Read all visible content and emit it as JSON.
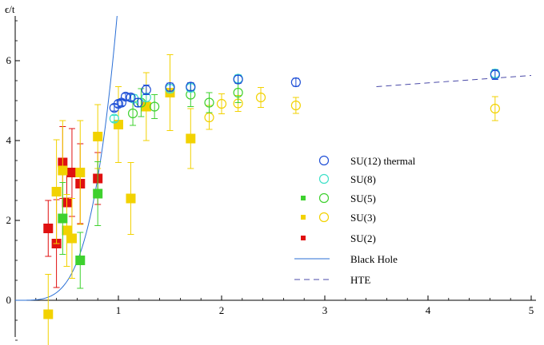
{
  "chart_data": {
    "type": "scatter",
    "ylabel": "ϵ/t",
    "xlim": [
      0,
      5
    ],
    "ylim": [
      -1,
      7
    ],
    "x_ticks": [
      1,
      2,
      3,
      4,
      5
    ],
    "y_ticks": [
      0,
      2,
      4,
      6
    ],
    "x_tick_labels": [
      "1",
      "2",
      "3",
      "4",
      "5"
    ],
    "y_tick_labels": [
      "0",
      "2",
      "4",
      "6"
    ],
    "grid": false,
    "legend_position": "right",
    "series": [
      {
        "name": "SU(12) thermal",
        "style": "open-circle",
        "color": "#1f4fd6",
        "points": [
          {
            "x": 0.96,
            "y": 4.82,
            "err": 0.08
          },
          {
            "x": 1.0,
            "y": 4.92,
            "err": 0.08
          },
          {
            "x": 1.03,
            "y": 4.95,
            "err": 0.08
          },
          {
            "x": 1.07,
            "y": 5.1,
            "err": 0.08
          },
          {
            "x": 1.12,
            "y": 5.08,
            "err": 0.08
          },
          {
            "x": 1.19,
            "y": 4.95,
            "err": 0.1
          },
          {
            "x": 1.27,
            "y": 5.27,
            "err": 0.12
          },
          {
            "x": 1.5,
            "y": 5.34,
            "err": 0.1
          },
          {
            "x": 1.7,
            "y": 5.35,
            "err": 0.1
          },
          {
            "x": 2.16,
            "y": 5.53,
            "err": 0.1
          },
          {
            "x": 2.72,
            "y": 5.46,
            "err": 0.1
          },
          {
            "x": 4.65,
            "y": 5.65,
            "err": 0.12
          }
        ]
      },
      {
        "name": "SU(8)",
        "style": "open-circle",
        "color": "#3ee0c8",
        "points": [
          {
            "x": 0.96,
            "y": 4.55,
            "err": 0.08
          },
          {
            "x": 1.15,
            "y": 5.05,
            "err": 0.1
          },
          {
            "x": 1.27,
            "y": 5.08,
            "err": 0.1
          },
          {
            "x": 1.5,
            "y": 5.3,
            "err": 0.1
          },
          {
            "x": 1.7,
            "y": 5.32,
            "err": 0.1
          },
          {
            "x": 2.16,
            "y": 5.55,
            "err": 0.1
          },
          {
            "x": 4.65,
            "y": 5.68,
            "err": 0.1
          }
        ]
      },
      {
        "name": "SU(5)",
        "style": "square-and-open-circle",
        "color": "#3ed12e",
        "points": [
          {
            "x": 0.46,
            "y": 2.05,
            "err": 0.9,
            "marker": "square"
          },
          {
            "x": 0.63,
            "y": 1.0,
            "err": 0.7,
            "marker": "square"
          },
          {
            "x": 0.8,
            "y": 2.67,
            "err": 0.8,
            "marker": "square"
          },
          {
            "x": 1.14,
            "y": 4.68,
            "err": 0.3,
            "marker": "circle"
          },
          {
            "x": 1.22,
            "y": 4.95,
            "err": 0.35,
            "marker": "circle"
          },
          {
            "x": 1.35,
            "y": 4.85,
            "err": 0.3,
            "marker": "circle"
          },
          {
            "x": 1.7,
            "y": 5.15,
            "err": 0.3,
            "marker": "circle"
          },
          {
            "x": 1.88,
            "y": 4.95,
            "err": 0.25,
            "marker": "circle"
          },
          {
            "x": 2.16,
            "y": 5.2,
            "err": 0.25,
            "marker": "circle"
          }
        ]
      },
      {
        "name": "SU(3)",
        "style": "square-and-open-circle",
        "color": "#f2d200",
        "points": [
          {
            "x": 0.32,
            "y": -0.35,
            "err": 1.0,
            "marker": "square"
          },
          {
            "x": 0.4,
            "y": 2.72,
            "err": 1.3,
            "marker": "square"
          },
          {
            "x": 0.46,
            "y": 3.25,
            "err": 1.25,
            "marker": "square"
          },
          {
            "x": 0.5,
            "y": 1.75,
            "err": 0.9,
            "marker": "square"
          },
          {
            "x": 0.55,
            "y": 1.55,
            "err": 1.0,
            "marker": "square"
          },
          {
            "x": 0.63,
            "y": 3.2,
            "err": 1.3,
            "marker": "square"
          },
          {
            "x": 0.8,
            "y": 4.1,
            "err": 0.8,
            "marker": "square"
          },
          {
            "x": 1.0,
            "y": 4.4,
            "err": 0.95,
            "marker": "square"
          },
          {
            "x": 1.12,
            "y": 2.55,
            "err": 0.9,
            "marker": "square"
          },
          {
            "x": 1.27,
            "y": 4.85,
            "err": 0.85,
            "marker": "square"
          },
          {
            "x": 1.5,
            "y": 5.2,
            "err": 0.95,
            "marker": "square"
          },
          {
            "x": 1.7,
            "y": 4.05,
            "err": 0.75,
            "marker": "square"
          },
          {
            "x": 1.88,
            "y": 4.58,
            "err": 0.3,
            "marker": "circle"
          },
          {
            "x": 2.0,
            "y": 4.92,
            "err": 0.25,
            "marker": "circle"
          },
          {
            "x": 2.16,
            "y": 4.93,
            "err": 0.2,
            "marker": "circle"
          },
          {
            "x": 2.38,
            "y": 5.08,
            "err": 0.25,
            "marker": "circle"
          },
          {
            "x": 2.72,
            "y": 4.88,
            "err": 0.2,
            "marker": "circle"
          },
          {
            "x": 4.65,
            "y": 4.8,
            "err": 0.3,
            "marker": "circle"
          }
        ]
      },
      {
        "name": "SU(2)",
        "style": "filled-square",
        "color": "#e01010",
        "points": [
          {
            "x": 0.32,
            "y": 1.8,
            "err": 0.7
          },
          {
            "x": 0.4,
            "y": 1.42,
            "err": 1.1
          },
          {
            "x": 0.46,
            "y": 3.45,
            "err": 0.9
          },
          {
            "x": 0.5,
            "y": 2.45,
            "err": 0.8
          },
          {
            "x": 0.55,
            "y": 3.2,
            "err": 1.1
          },
          {
            "x": 0.63,
            "y": 2.92,
            "err": 1.0
          },
          {
            "x": 0.8,
            "y": 3.05,
            "err": 0.65
          }
        ]
      },
      {
        "name": "Black Hole",
        "style": "line",
        "color": "#2a6fd6",
        "curve": "power4",
        "coefficient": 7.5,
        "domain": [
          0,
          1.0
        ]
      },
      {
        "name": "HTE",
        "style": "dashed-line",
        "color": "#4a4aa8",
        "points": [
          {
            "x": 3.5,
            "y": 5.35
          },
          {
            "x": 5.0,
            "y": 5.63
          }
        ]
      }
    ]
  }
}
